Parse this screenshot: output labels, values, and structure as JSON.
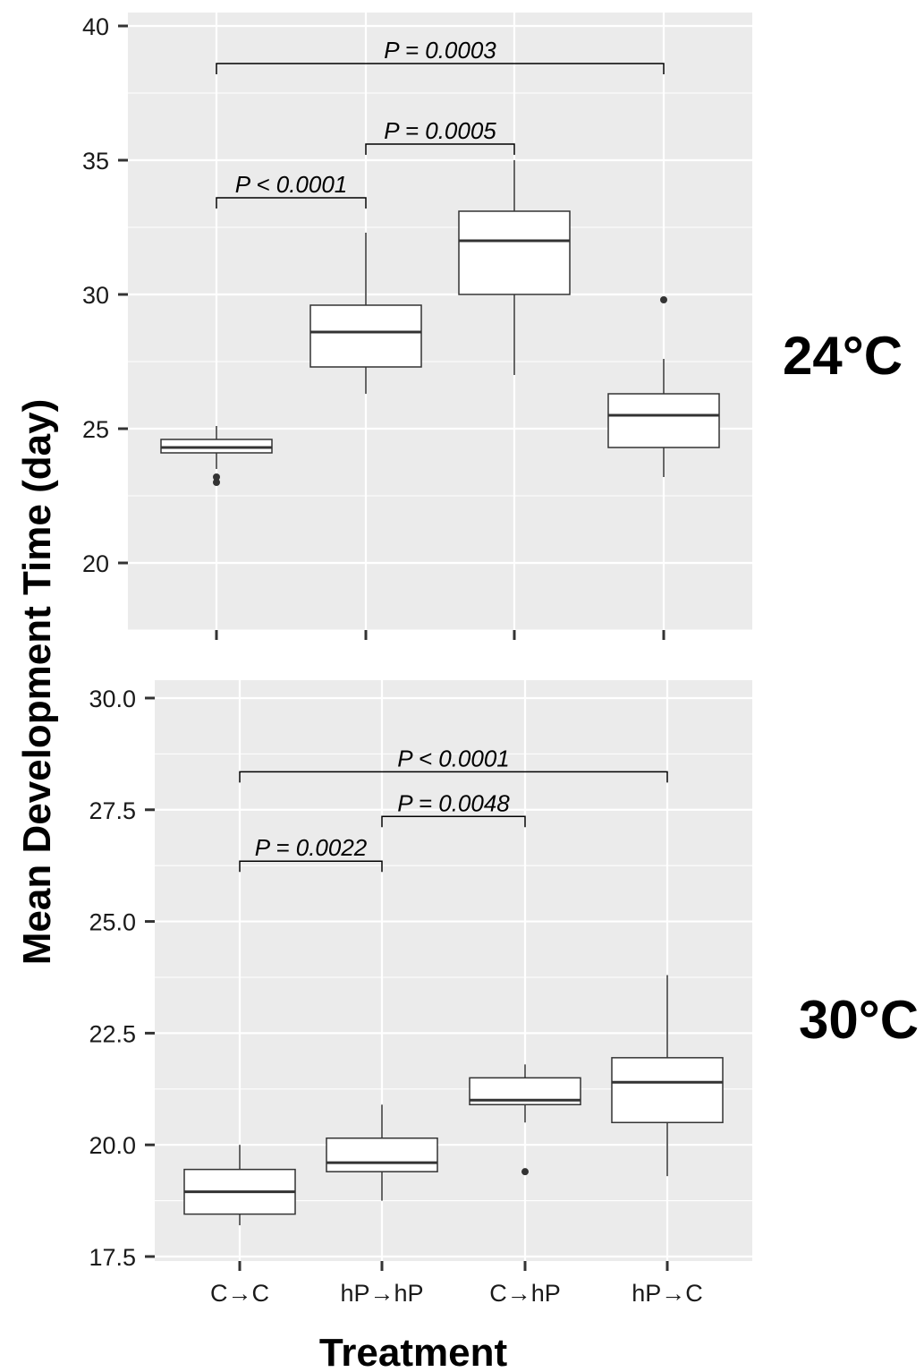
{
  "chart_data": {
    "type": "box",
    "ylabel": "Mean Development Time (day)",
    "xlabel": "Treatment",
    "categories": [
      "C→C",
      "hP→hP",
      "C→hP",
      "hP→C"
    ],
    "facets": [
      {
        "label": "24°C",
        "ylim": [
          17.5,
          40.5
        ],
        "yticks": [
          "20",
          "25",
          "30",
          "35",
          "40"
        ],
        "ytick_values": [
          20,
          25,
          30,
          35,
          40
        ],
        "minor_ticks": [
          17.5,
          22.5,
          27.5,
          32.5,
          37.5
        ],
        "show_x_tick_labels": false,
        "boxes": [
          {
            "category": "C→C",
            "min": 23.5,
            "q1": 24.1,
            "median": 24.3,
            "q3": 24.6,
            "max": 25.1,
            "outliers": [
              23.2,
              23.0
            ]
          },
          {
            "category": "hP→hP",
            "min": 26.3,
            "q1": 27.3,
            "median": 28.6,
            "q3": 29.6,
            "max": 32.3,
            "outliers": []
          },
          {
            "category": "C→hP",
            "min": 27.0,
            "q1": 30.0,
            "median": 32.0,
            "q3": 33.1,
            "max": 35.0,
            "outliers": []
          },
          {
            "category": "hP→C",
            "min": 23.2,
            "q1": 24.3,
            "median": 25.5,
            "q3": 26.3,
            "max": 27.6,
            "outliers": [
              29.8
            ]
          }
        ],
        "comparisons": [
          {
            "from": "C→C",
            "to": "hP→C",
            "y": 38.6,
            "label": "P = 0.0003"
          },
          {
            "from": "hP→hP",
            "to": "C→hP",
            "y": 35.6,
            "label": "P = 0.0005"
          },
          {
            "from": "C→C",
            "to": "hP→hP",
            "y": 33.6,
            "label": "P < 0.0001"
          }
        ]
      },
      {
        "label": "30°C",
        "ylim": [
          17.4,
          30.4
        ],
        "yticks": [
          "17.5",
          "20.0",
          "22.5",
          "25.0",
          "27.5",
          "30.0"
        ],
        "ytick_values": [
          17.5,
          20.0,
          22.5,
          25.0,
          27.5,
          30.0
        ],
        "minor_ticks": [
          18.75,
          21.25,
          23.75,
          26.25,
          28.75
        ],
        "show_x_tick_labels": true,
        "boxes": [
          {
            "category": "C→C",
            "min": 18.2,
            "q1": 18.45,
            "median": 18.95,
            "q3": 19.45,
            "max": 20.0,
            "outliers": []
          },
          {
            "category": "hP→hP",
            "min": 18.75,
            "q1": 19.4,
            "median": 19.6,
            "q3": 20.15,
            "max": 20.9,
            "outliers": []
          },
          {
            "category": "C→hP",
            "min": 20.5,
            "q1": 20.9,
            "median": 21.0,
            "q3": 21.5,
            "max": 21.8,
            "outliers": [
              19.4
            ]
          },
          {
            "category": "hP→C",
            "min": 19.3,
            "q1": 20.5,
            "median": 21.4,
            "q3": 21.95,
            "max": 23.8,
            "outliers": []
          }
        ],
        "comparisons": [
          {
            "from": "C→C",
            "to": "hP→C",
            "y": 28.35,
            "label": "P < 0.0001"
          },
          {
            "from": "hP→hP",
            "to": "C→hP",
            "y": 27.35,
            "label": "P = 0.0048"
          },
          {
            "from": "C→C",
            "to": "hP→hP",
            "y": 26.35,
            "label": "P = 0.0022"
          }
        ]
      }
    ]
  }
}
